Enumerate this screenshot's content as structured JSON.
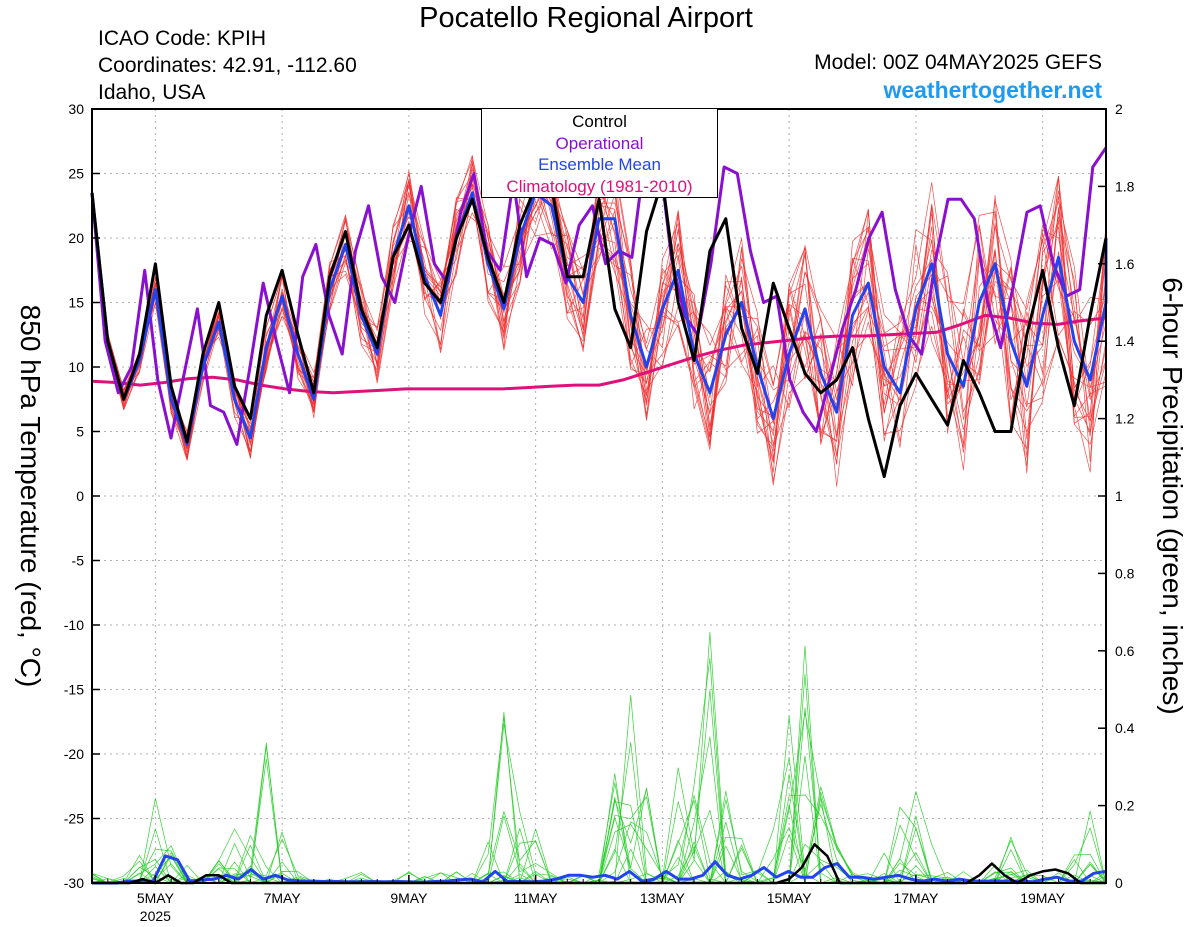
{
  "header": {
    "title": "Pocatello Regional Airport",
    "icao": "ICAO Code: KPIH",
    "coordinates": "Coordinates: 42.91, -112.60",
    "region": "Idaho, USA",
    "model": "Model: 00Z 04MAY2025 GEFS",
    "website": "weathertogether.net"
  },
  "legend": {
    "control": "Control",
    "operational": "Operational",
    "ensemble_mean": "Ensemble Mean",
    "climatology": "Climatology (1981-2010)"
  },
  "colors": {
    "control": "#000000",
    "operational": "#8a10d0",
    "ensemble_mean": "#2244ee",
    "climatology": "#e0107a",
    "member_temp": "#f03030",
    "member_precip": "#22cc22",
    "website": "#1e9bf0"
  },
  "chart_data": {
    "type": "line",
    "y_left_label": "850 hPa Temperature (red, °C)",
    "y_right_label": "6-hour Precipitation (green, inches)",
    "y_left_range": [
      -30,
      30
    ],
    "y_left_ticks": [
      "30",
      "25",
      "20",
      "15",
      "10",
      "5",
      "0",
      "-5",
      "-10",
      "-15",
      "-20",
      "-25",
      "-30"
    ],
    "y_right_range": [
      0,
      2
    ],
    "y_right_ticks": [
      "2",
      "1.8",
      "1.6",
      "1.4",
      "1.2",
      "1",
      "0.8",
      "0.6",
      "0.4",
      "0.2",
      "0"
    ],
    "x_range_days": [
      4.0,
      20.0
    ],
    "x_step_hours": 6,
    "x_ticks": [
      {
        "day": 5,
        "label": "5MAY",
        "sub": "2025"
      },
      {
        "day": 7,
        "label": "7MAY",
        "sub": ""
      },
      {
        "day": 9,
        "label": "9MAY",
        "sub": ""
      },
      {
        "day": 11,
        "label": "11MAY",
        "sub": ""
      },
      {
        "day": 13,
        "label": "13MAY",
        "sub": ""
      },
      {
        "day": 15,
        "label": "15MAY",
        "sub": ""
      },
      {
        "day": 17,
        "label": "17MAY",
        "sub": ""
      },
      {
        "day": 19,
        "label": "19MAY",
        "sub": ""
      }
    ],
    "grid": true,
    "series": [
      {
        "name": "Control",
        "role": "control",
        "values": [
          23.5,
          12,
          7.5,
          11,
          18,
          8.5,
          4.2,
          11,
          15,
          8.5,
          6,
          14,
          17.5,
          12.5,
          8,
          17,
          20.5,
          14.5,
          11.5,
          18.5,
          21,
          16.5,
          15,
          20,
          23,
          18.5,
          15,
          21,
          24,
          24,
          17,
          17,
          23,
          14.5,
          11.5,
          20.5,
          24.5,
          15,
          10.5,
          19,
          21.5,
          13,
          9.5,
          16.5,
          13,
          9.5,
          8,
          9,
          11.5,
          6,
          1.5,
          7,
          9.5,
          7.5,
          5.5,
          10.5,
          8,
          5,
          5,
          12.5,
          17.5,
          11.5,
          7,
          14,
          20
        ]
      },
      {
        "name": "Operational",
        "role": "operational",
        "values": [
          23.5,
          12,
          8,
          10,
          17.5,
          9,
          4.5,
          9.5,
          14.5,
          7,
          6.5,
          4,
          10,
          16.5,
          12,
          8,
          17,
          19.5,
          14,
          11,
          19,
          22.5,
          17,
          15,
          20,
          24,
          18,
          16.5,
          22,
          25,
          19,
          17.5,
          24.5,
          17,
          20,
          19.5,
          16.5,
          21,
          22.5,
          18,
          19,
          18.5,
          26.5,
          27,
          18.5,
          14,
          12.5,
          18,
          25.5,
          25,
          19,
          15,
          15.5,
          9,
          6.5,
          5,
          9,
          13,
          16,
          20,
          22,
          16,
          12.5,
          11,
          18,
          23,
          23,
          21.5,
          15,
          11.5,
          16.5,
          22,
          22.5,
          18,
          15.5,
          16,
          25.5,
          27
        ]
      },
      {
        "name": "Ensemble Mean",
        "role": "ensemble_mean",
        "values": [
          23.5,
          12,
          7.5,
          10.5,
          16,
          7.5,
          4,
          10,
          13.5,
          7.5,
          4.5,
          11.5,
          15.5,
          11,
          7.5,
          16,
          19.5,
          14,
          11,
          18.5,
          22.5,
          17,
          14,
          20,
          23.5,
          18,
          14.5,
          20,
          23.5,
          22.5,
          17,
          15,
          21.5,
          21.5,
          14,
          10,
          14.5,
          17.5,
          11,
          8,
          12.5,
          15,
          10,
          6,
          11,
          14.5,
          9.5,
          6.5,
          14,
          16.5,
          10,
          8,
          14.5,
          18,
          11,
          8.5,
          15,
          18,
          12,
          8.5,
          14,
          18.5,
          12,
          9,
          15,
          20
        ]
      },
      {
        "name": "Climatology (1981-2010)",
        "role": "climatology",
        "values": [
          8.9,
          8.8,
          8.6,
          8.8,
          9.1,
          9.2,
          9.0,
          8.6,
          8.3,
          8.1,
          8.0,
          8.1,
          8.2,
          8.3,
          8.3,
          8.3,
          8.3,
          8.3,
          8.4,
          8.5,
          8.6,
          8.6,
          9.0,
          9.6,
          10.2,
          10.8,
          11.3,
          11.7,
          11.9,
          12.1,
          12.3,
          12.4,
          12.4,
          12.5,
          12.6,
          12.7,
          13.3,
          14.0,
          13.8,
          13.4,
          13.3,
          13.6,
          13.8
        ]
      },
      {
        "name": "Control Precipitation",
        "role": "control_precip",
        "axis": "right",
        "values": [
          0,
          0,
          0,
          0,
          0.01,
          0,
          0.02,
          0,
          0,
          0.02,
          0.02,
          0,
          0,
          0,
          0,
          0,
          0,
          0,
          0,
          0,
          0,
          0,
          0,
          0,
          0,
          0,
          0,
          0,
          0,
          0,
          0,
          0,
          0,
          0,
          0,
          0,
          0,
          0,
          0,
          0,
          0,
          0,
          0,
          0,
          0,
          0,
          0,
          0,
          0,
          0,
          0,
          0,
          0,
          0,
          0,
          0.01,
          0.04,
          0.1,
          0.07,
          0,
          0,
          0,
          0,
          0,
          0,
          0,
          0,
          0,
          0,
          0,
          0.02,
          0.05,
          0.02,
          0,
          0.02,
          0.03,
          0.035,
          0.025,
          0,
          0,
          0
        ]
      },
      {
        "name": "Ensemble Mean Precipitation",
        "role": "mean_precip",
        "axis": "right",
        "values": [
          0,
          0,
          0,
          0.005,
          0.005,
          0.004,
          0.07,
          0.06,
          0.005,
          0.008,
          0.01,
          0.02,
          0.01,
          0.035,
          0.01,
          0.02,
          0.008,
          0.005,
          0.005,
          0.004,
          0.004,
          0.003,
          0.003,
          0.004,
          0.003,
          0.004,
          0.003,
          0.002,
          0.004,
          0.005,
          0.008,
          0.01,
          0.003,
          0.03,
          0.004,
          0.004,
          0.003,
          0.005,
          0.01,
          0.02,
          0.02,
          0.015,
          0.02,
          0.01,
          0.03,
          0.005,
          0.01,
          0.03,
          0.01,
          0.01,
          0.02,
          0.055,
          0.02,
          0.01,
          0.02,
          0.04,
          0.015,
          0.03,
          0.015,
          0.015,
          0.04,
          0.05,
          0.015,
          0.015,
          0.01,
          0.015,
          0.02,
          0.01,
          0.005,
          0.01,
          0.005,
          0.01,
          0.005,
          0.005,
          0.005,
          0.005,
          0.005,
          0.003,
          0.01,
          0.015,
          0.005,
          0.005,
          0.025,
          0.03
        ]
      }
    ]
  }
}
